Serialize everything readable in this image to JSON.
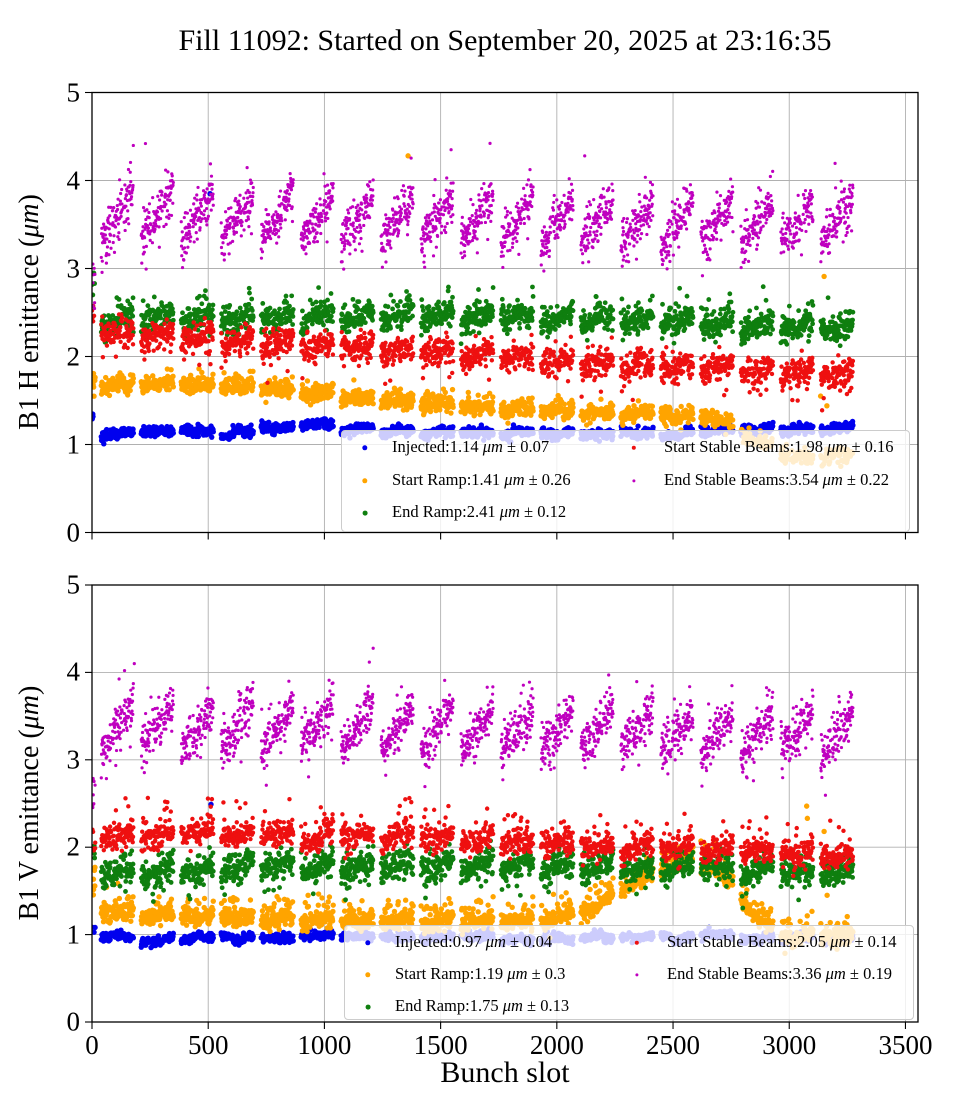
{
  "title": "Fill 11092: Started on September 20, 2025 at 23:16:35",
  "unit": "μm",
  "plus_minus": "±",
  "background": "#ffffff",
  "grid_color": "#b0b0b0",
  "axis_color": "#000000",
  "chart_data": [
    {
      "type": "scatter",
      "ylabel": "B1 H emittance (μm)",
      "ylabel_prefix": "B1 H emittance (",
      "ylabel_suffix": ")",
      "xlabel": "Bunch slot",
      "xlim": [
        0,
        3554
      ],
      "ylim": [
        0,
        5
      ],
      "xticks": [
        0,
        500,
        1000,
        1500,
        2000,
        2500,
        3000,
        3500
      ],
      "yticks": [
        0,
        1,
        2,
        3,
        4,
        5
      ],
      "grid": true,
      "legend": {
        "columns": 2,
        "location": "lower right"
      },
      "trains": {
        "count": 19,
        "start": 40,
        "pitch": 172,
        "batches": 3,
        "batch_pitch": 48,
        "batch_len": 42,
        "xmax": 3283
      },
      "series": [
        {
          "name": "Injected",
          "mean": "1.14",
          "err": "0.07",
          "color": "#0000EE",
          "radius": 2.7,
          "step": 1.35,
          "band": [
            [
              0,
              1.13
            ],
            [
              500,
              1.14
            ],
            [
              800,
              1.17
            ],
            [
              1000,
              1.21
            ],
            [
              1150,
              1.16
            ],
            [
              1500,
              1.13
            ],
            [
              2000,
              1.12
            ],
            [
              2500,
              1.13
            ],
            [
              2900,
              1.17
            ],
            [
              3283,
              1.18
            ]
          ],
          "sigma": 0.028,
          "train_rise": 0.03,
          "edge_cluster": {
            "n": 3,
            "y": [
              1.24,
              1.36
            ]
          },
          "outliers": [
            [
              508,
              3.85
            ]
          ]
        },
        {
          "name": "Start Ramp",
          "mean": "1.41",
          "err": "0.26",
          "color": "#FFA400",
          "radius": 2.7,
          "step": 1.35,
          "band": [
            [
              0,
              1.7
            ],
            [
              400,
              1.67
            ],
            [
              700,
              1.64
            ],
            [
              1000,
              1.58
            ],
            [
              1300,
              1.5
            ],
            [
              1600,
              1.44
            ],
            [
              1900,
              1.4
            ],
            [
              2200,
              1.37
            ],
            [
              2500,
              1.34
            ],
            [
              2700,
              1.3
            ],
            [
              2850,
              1.1
            ],
            [
              3000,
              0.86
            ],
            [
              3100,
              0.82
            ],
            [
              3283,
              0.93
            ]
          ],
          "sigma": 0.045,
          "train_rise": 0.06,
          "spike_p": 0.05,
          "spike_amp": 0.1,
          "sparse_after": 2720,
          "edge_cluster": {
            "n": 7,
            "y": [
              1.42,
              1.92
            ]
          },
          "outliers": [
            [
              1360,
              4.28
            ],
            [
              3150,
              2.91
            ],
            [
              3135,
              1.55
            ],
            [
              3162,
              1.44
            ]
          ]
        },
        {
          "name": "End Ramp",
          "mean": "2.41",
          "err": "0.12",
          "color": "#0F7F0F",
          "radius": 2.4,
          "step": 1.35,
          "band": [
            [
              0,
              2.4
            ],
            [
              600,
              2.44
            ],
            [
              1200,
              2.46
            ],
            [
              1800,
              2.45
            ],
            [
              2300,
              2.43
            ],
            [
              2800,
              2.37
            ],
            [
              3283,
              2.31
            ]
          ],
          "sigma": 0.075,
          "train_rise": 0.14,
          "spike_p": 0.05,
          "spike_amp": 0.18,
          "edge_cluster": {
            "n": 3,
            "y": [
              2.55,
              2.95
            ]
          },
          "outliers": [
            [
              8,
              2.95
            ]
          ]
        },
        {
          "name": "Start Stable Beams",
          "mean": "1.98",
          "err": "0.16",
          "color": "#EE1010",
          "radius": 2.2,
          "step": 1.35,
          "band": [
            [
              0,
              2.28
            ],
            [
              400,
              2.24
            ],
            [
              800,
              2.17
            ],
            [
              1200,
              2.09
            ],
            [
              1600,
              2.02
            ],
            [
              2000,
              1.96
            ],
            [
              2400,
              1.91
            ],
            [
              2800,
              1.86
            ],
            [
              3283,
              1.8
            ]
          ],
          "sigma": 0.08,
          "train_rise": 0.12,
          "spike_p": 0.04,
          "spike_amp": -0.22,
          "edge_cluster": {
            "n": 6,
            "y": [
              2.28,
              2.6
            ]
          },
          "outliers": []
        },
        {
          "name": "End Stable Beams",
          "mean": "3.54",
          "err": "0.22",
          "color": "#BF00BF",
          "radius": 1.6,
          "step": 1.1,
          "band": [
            [
              0,
              3.6
            ],
            [
              800,
              3.58
            ],
            [
              1600,
              3.55
            ],
            [
              2400,
              3.52
            ],
            [
              3283,
              3.52
            ]
          ],
          "sigma": 0.13,
          "train_rise": 0.55,
          "spike_p": 0.02,
          "spike_amp": 0.3,
          "spike_sym": true,
          "edge_cluster": {
            "n": 8,
            "y": [
              2.5,
              3.1
            ]
          },
          "outliers": [
            [
              230,
              4.42
            ],
            [
              1545,
              4.35
            ],
            [
              2120,
              4.28
            ]
          ]
        }
      ]
    },
    {
      "type": "scatter",
      "ylabel": "B1 V emittance (μm)",
      "ylabel_prefix": "B1 V emittance (",
      "ylabel_suffix": ")",
      "xlabel": "Bunch slot",
      "xlim": [
        0,
        3554
      ],
      "ylim": [
        0,
        5
      ],
      "xticks": [
        0,
        500,
        1000,
        1500,
        2000,
        2500,
        3000,
        3500
      ],
      "yticks": [
        0,
        1,
        2,
        3,
        4,
        5
      ],
      "grid": true,
      "legend": {
        "columns": 2,
        "location": "lower right"
      },
      "trains": {
        "count": 19,
        "start": 40,
        "pitch": 172,
        "batches": 3,
        "batch_pitch": 48,
        "batch_len": 42,
        "xmax": 3283
      },
      "series": [
        {
          "name": "Injected",
          "mean": "0.97",
          "err": "0.04",
          "color": "#0000EE",
          "radius": 2.7,
          "step": 1.35,
          "band": [
            [
              0,
              1.0
            ],
            [
              200,
              0.97
            ],
            [
              600,
              0.96
            ],
            [
              1200,
              0.96
            ],
            [
              1800,
              0.97
            ],
            [
              2400,
              0.96
            ],
            [
              3283,
              0.98
            ]
          ],
          "sigma": 0.024,
          "train_rise": 0.025,
          "edge_cluster": {
            "n": 3,
            "y": [
              1.0,
              1.1
            ]
          },
          "outliers": [
            [
              512,
              2.49
            ]
          ]
        },
        {
          "name": "Start Ramp",
          "mean": "1.19",
          "err": "0.3",
          "color": "#FFA400",
          "radius": 2.7,
          "step": 1.35,
          "band": [
            [
              0,
              1.28
            ],
            [
              300,
              1.22
            ],
            [
              700,
              1.19
            ],
            [
              1200,
              1.17
            ],
            [
              1700,
              1.15
            ],
            [
              2000,
              1.17
            ],
            [
              2150,
              1.3
            ],
            [
              2300,
              1.55
            ],
            [
              2450,
              1.78
            ],
            [
              2600,
              1.88
            ],
            [
              2700,
              1.72
            ],
            [
              2800,
              1.4
            ],
            [
              2900,
              1.08
            ],
            [
              3000,
              0.96
            ],
            [
              3150,
              0.95
            ],
            [
              3283,
              1.0
            ]
          ],
          "sigma": 0.05,
          "train_rise": 0.05,
          "spike_p": 0.12,
          "spike_amp": 0.16,
          "edge_cluster": {
            "n": 6,
            "y": [
              1.42,
              1.8
            ]
          },
          "outliers": [
            [
              3075,
              2.47
            ],
            [
              3078,
              2.33
            ],
            [
              3150,
              2.18
            ],
            [
              3157,
              1.74
            ],
            [
              3163,
              1.45
            ]
          ]
        },
        {
          "name": "End Ramp",
          "mean": "1.75",
          "err": "0.13",
          "color": "#0F7F0F",
          "radius": 2.4,
          "step": 1.35,
          "band": [
            [
              0,
              1.7
            ],
            [
              600,
              1.77
            ],
            [
              1200,
              1.79
            ],
            [
              1800,
              1.79
            ],
            [
              2400,
              1.77
            ],
            [
              2900,
              1.73
            ],
            [
              3283,
              1.7
            ]
          ],
          "sigma": 0.08,
          "train_rise": 0.12,
          "spike_p": 0.03,
          "spike_amp": -0.18,
          "edge_cluster": {
            "n": 3,
            "y": [
              1.85,
              2.1
            ]
          },
          "outliers": []
        },
        {
          "name": "Start Stable Beams",
          "mean": "2.05",
          "err": "0.14",
          "color": "#EE1010",
          "radius": 2.2,
          "step": 1.35,
          "band": [
            [
              0,
              2.12
            ],
            [
              600,
              2.16
            ],
            [
              1200,
              2.13
            ],
            [
              1800,
              2.08
            ],
            [
              2200,
              2.04
            ],
            [
              2600,
              1.99
            ],
            [
              3000,
              1.94
            ],
            [
              3283,
              1.9
            ]
          ],
          "sigma": 0.075,
          "train_rise": 0.1,
          "spike_p": 0.05,
          "spike_amp": 0.28,
          "edge_cluster": {
            "n": 6,
            "y": [
              1.95,
              2.35
            ]
          },
          "outliers": [
            [
              516,
              2.55
            ]
          ]
        },
        {
          "name": "End Stable Beams",
          "mean": "3.36",
          "err": "0.19",
          "color": "#BF00BF",
          "radius": 1.6,
          "step": 1.1,
          "band": [
            [
              0,
              3.38
            ],
            [
              800,
              3.39
            ],
            [
              1600,
              3.34
            ],
            [
              2400,
              3.32
            ],
            [
              3283,
              3.3
            ]
          ],
          "sigma": 0.13,
          "train_rise": 0.5,
          "spike_p": 0.02,
          "spike_amp": 0.3,
          "spike_sym": true,
          "edge_cluster": {
            "n": 8,
            "y": [
              2.45,
              2.8
            ]
          },
          "outliers": [
            [
              182,
              4.1
            ],
            [
              140,
              4.02
            ],
            [
              2846,
              2.76
            ]
          ]
        }
      ]
    }
  ]
}
